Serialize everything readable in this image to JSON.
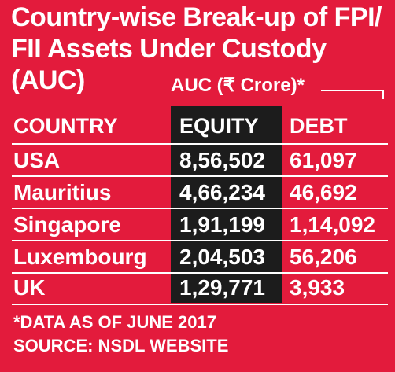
{
  "title_line1": "Country-wise Break-up of FPI/",
  "title_line2": "FII Assets Under Custody (AUC)",
  "auc_label": "AUC (₹  Crore)*",
  "table": {
    "headers": {
      "country": "COUNTRY",
      "equity": "EQUITY",
      "debt": "DEBT"
    },
    "rows": [
      {
        "country": "USA",
        "equity": "8,56,502",
        "debt": "61,097"
      },
      {
        "country": "Mauritius",
        "equity": "4,66,234",
        "debt": "46,692"
      },
      {
        "country": "Singapore",
        "equity": "1,91,199",
        "debt": "1,14,092"
      },
      {
        "country": "Luxembourg",
        "equity": "2,04,503",
        "debt": "56,206"
      },
      {
        "country": "UK",
        "equity": "1,29,771",
        "debt": "3,933"
      }
    ]
  },
  "footnote": "*DATA AS OF JUNE 2017",
  "source": "SOURCE: NSDL WEBSITE",
  "colors": {
    "background": "#e31b3c",
    "equity_column": "#1c1c1c",
    "text": "#ffffff"
  }
}
